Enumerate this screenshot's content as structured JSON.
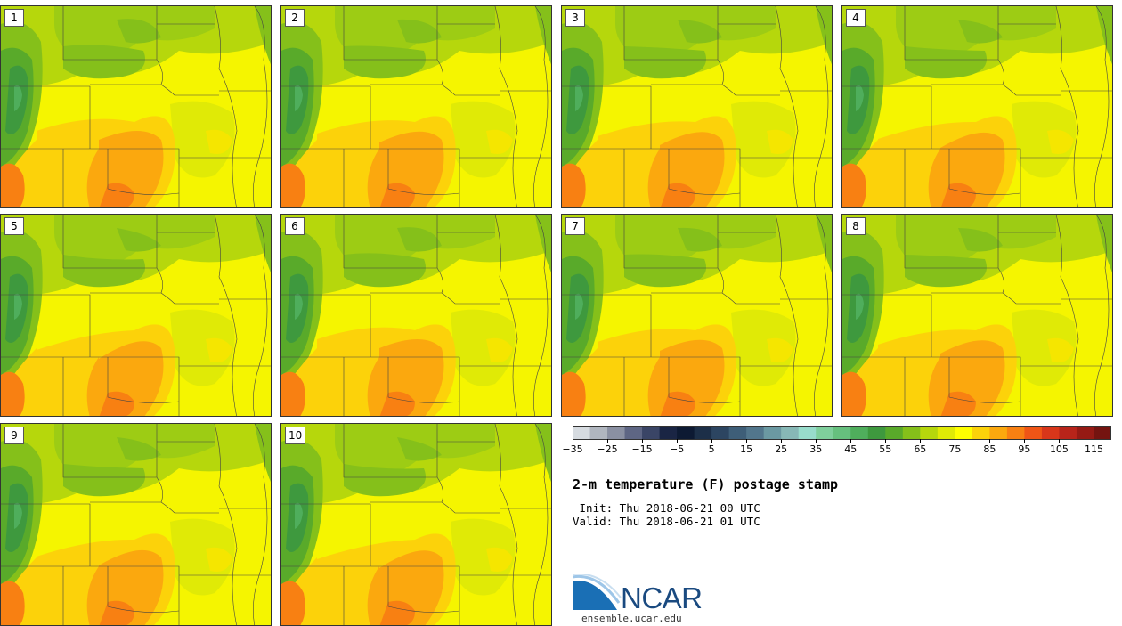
{
  "panels": [
    {
      "label": "1"
    },
    {
      "label": "2"
    },
    {
      "label": "3"
    },
    {
      "label": "4"
    },
    {
      "label": "5"
    },
    {
      "label": "6"
    },
    {
      "label": "7"
    },
    {
      "label": "8"
    },
    {
      "label": "9"
    },
    {
      "label": "10"
    }
  ],
  "colorbar": {
    "colors": [
      "#d6dbe0",
      "#b0b6bf",
      "#8a90a2",
      "#5e6684",
      "#3a4566",
      "#1a2544",
      "#0d1a33",
      "#1c2f48",
      "#2c4561",
      "#3e5e78",
      "#52768c",
      "#6b99a2",
      "#87b8b6",
      "#98dccb",
      "#7fcf9c",
      "#66c07e",
      "#4fae5c",
      "#3e993e",
      "#59aa2a",
      "#85c01a",
      "#b6d70c",
      "#e0ea06",
      "#ffff00",
      "#fcd20a",
      "#fba80e",
      "#f88012",
      "#ef5516",
      "#d8361a",
      "#b8241a",
      "#961a14",
      "#741410"
    ],
    "tick_labels": [
      "−35",
      "−25",
      "−15",
      "−5",
      "5",
      "15",
      "25",
      "35",
      "45",
      "55",
      "65",
      "75",
      "85",
      "95",
      "105",
      "115"
    ]
  },
  "title": "2-m temperature (F) postage stamp",
  "init_line": " Init: Thu 2018-06-21 00 UTC",
  "valid_line": "Valid: Thu 2018-06-21 01 UTC",
  "logo": {
    "text": "NCAR",
    "site": "ensemble.ucar.edu"
  }
}
